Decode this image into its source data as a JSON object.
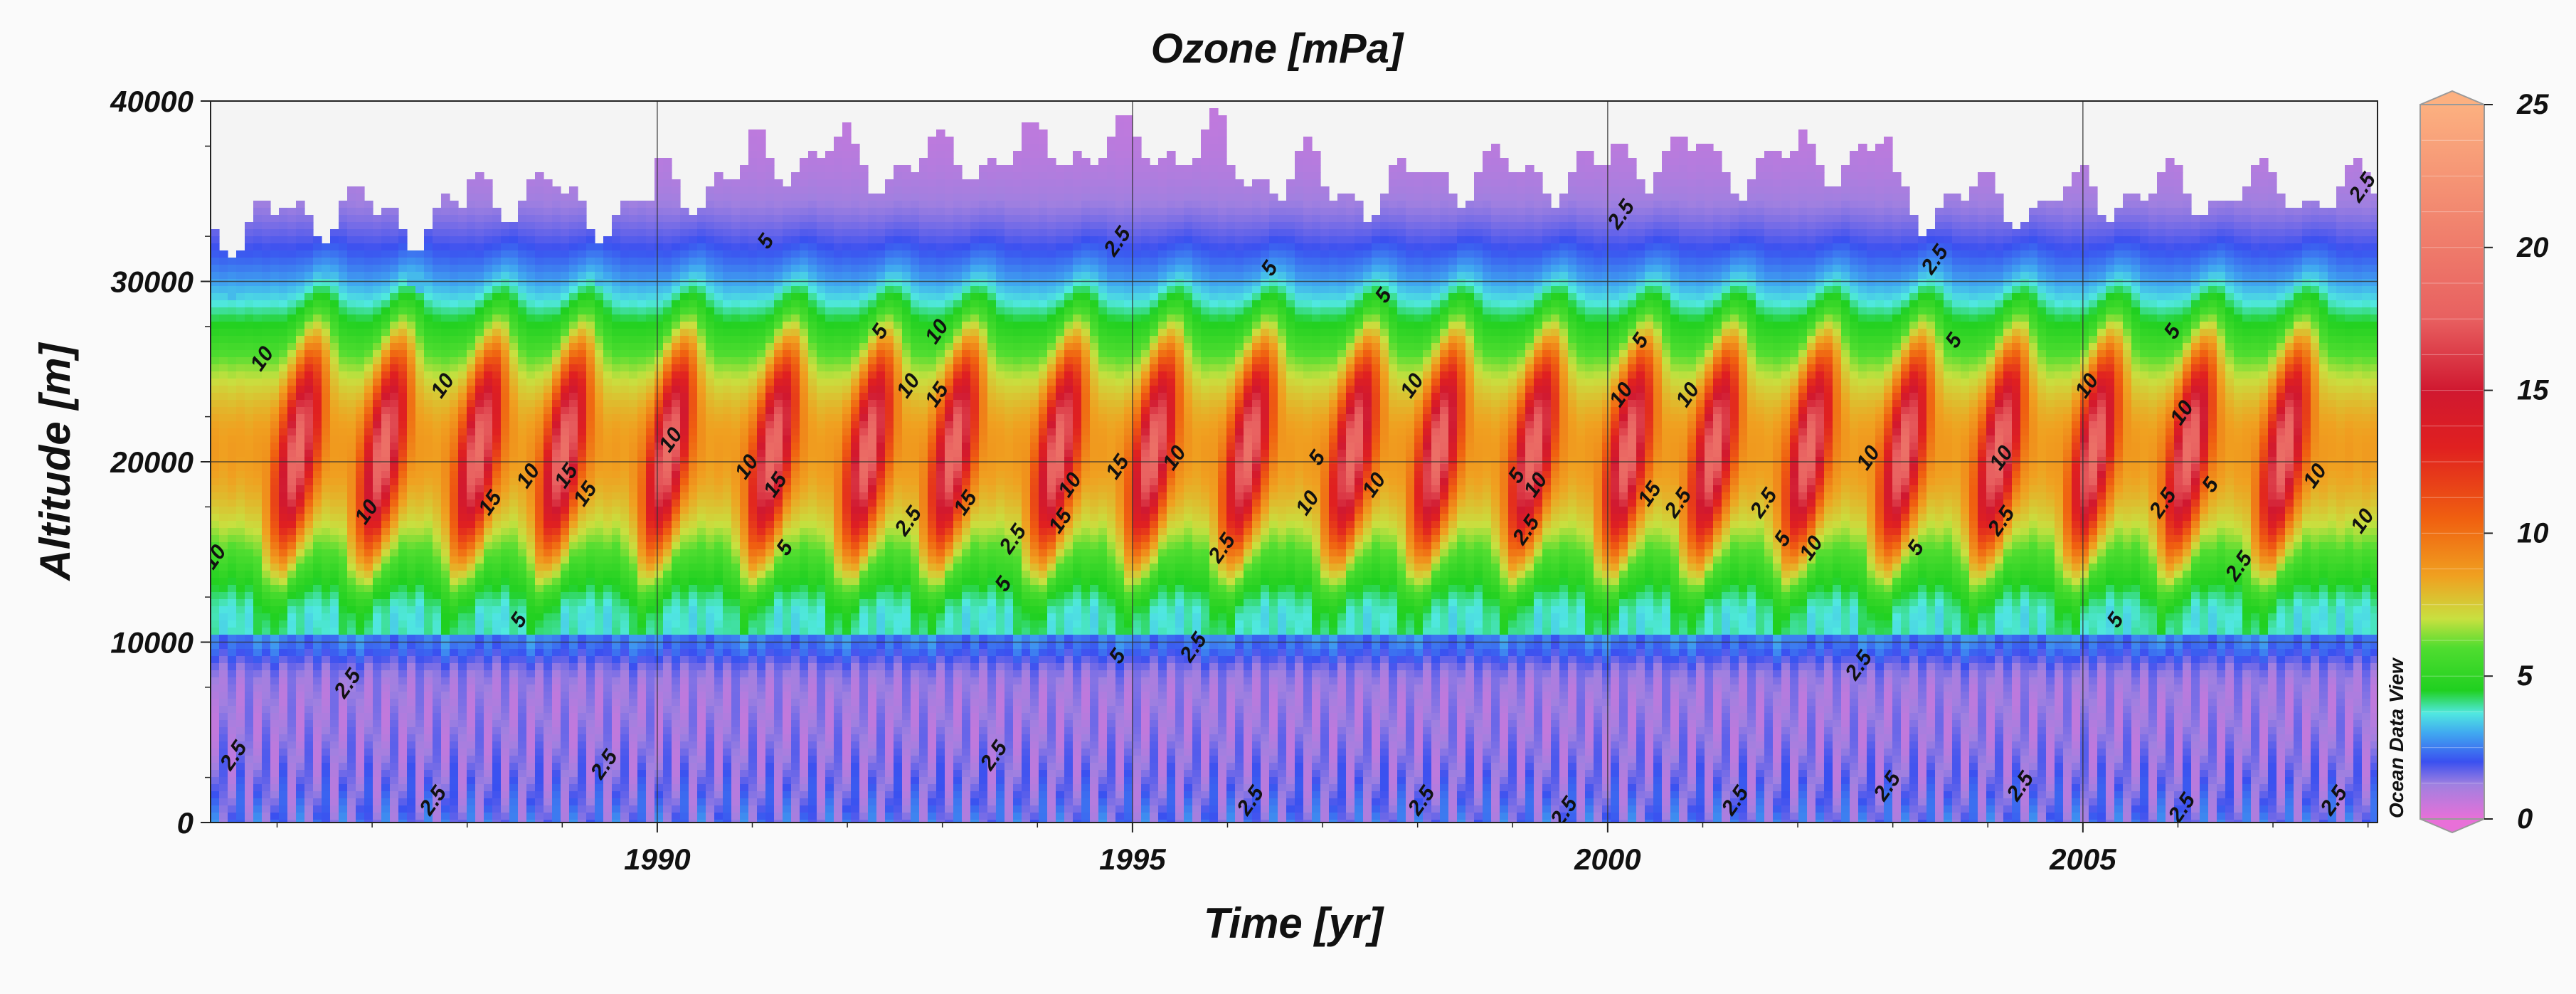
{
  "chart_data": {
    "type": "heatmap",
    "title": "Ozone [mPa]",
    "xlabel": "Time [yr]",
    "ylabel": "Altitude [m]",
    "xlim": [
      1985.3,
      2008.1
    ],
    "ylim": [
      0,
      40000
    ],
    "x_ticks": [
      1990,
      1995,
      2000,
      2005
    ],
    "x_tick_labels": [
      "1990",
      "1995",
      "2000",
      "2005"
    ],
    "y_ticks": [
      0,
      10000,
      20000,
      30000,
      40000
    ],
    "y_tick_labels": [
      "0",
      "10000",
      "20000",
      "30000",
      "40000"
    ],
    "grid": true,
    "colorbar": {
      "range": [
        0,
        25
      ],
      "ticks": [
        0,
        5,
        10,
        15,
        20,
        25
      ],
      "tick_labels": [
        "0",
        "5",
        "10",
        "15",
        "20",
        "25"
      ],
      "stops": [
        {
          "value": 0,
          "color": "#e870d8"
        },
        {
          "value": 1.2,
          "color": "#a080e0"
        },
        {
          "value": 2.0,
          "color": "#3a50f0"
        },
        {
          "value": 3.0,
          "color": "#40a8f0"
        },
        {
          "value": 3.7,
          "color": "#50e8e0"
        },
        {
          "value": 4.5,
          "color": "#20d020"
        },
        {
          "value": 6.0,
          "color": "#50dd30"
        },
        {
          "value": 7.0,
          "color": "#c8e040"
        },
        {
          "value": 8.5,
          "color": "#f0a020"
        },
        {
          "value": 10.5,
          "color": "#f06010"
        },
        {
          "value": 13,
          "color": "#e02020"
        },
        {
          "value": 15,
          "color": "#d01830"
        },
        {
          "value": 17.5,
          "color": "#e86060"
        },
        {
          "value": 25,
          "color": "#fcb080"
        }
      ]
    },
    "contour_levels": [
      2.5,
      5,
      10,
      15
    ],
    "seasonal_peaks": [
      1986.2,
      1987.1,
      1988.1,
      1989.0,
      1990.1,
      1991.2,
      1992.2,
      1993.1,
      1994.2,
      1995.2,
      1996.2,
      1997.3,
      1998.2,
      1999.2,
      2000.2,
      2001.1,
      2002.1,
      2003.1,
      2004.1,
      2005.1,
      2006.1,
      2007.1
    ],
    "max_altitude_by_year": [
      {
        "x": 1985.5,
        "y": 33000
      },
      {
        "x": 1986.5,
        "y": 34000
      },
      {
        "x": 1987.5,
        "y": 33500
      },
      {
        "x": 1988.5,
        "y": 35000
      },
      {
        "x": 1989.5,
        "y": 34000
      },
      {
        "x": 1990.5,
        "y": 35500
      },
      {
        "x": 1991.5,
        "y": 37000
      },
      {
        "x": 1992.5,
        "y": 36500
      },
      {
        "x": 1993.5,
        "y": 37000
      },
      {
        "x": 1994.5,
        "y": 37500
      },
      {
        "x": 1995.5,
        "y": 37500
      },
      {
        "x": 1996.5,
        "y": 36000
      },
      {
        "x": 1997.5,
        "y": 35000
      },
      {
        "x": 1998.5,
        "y": 36000
      },
      {
        "x": 1999.5,
        "y": 36000
      },
      {
        "x": 2000.5,
        "y": 37000
      },
      {
        "x": 2001.5,
        "y": 36500
      },
      {
        "x": 2002.5,
        "y": 37000
      },
      {
        "x": 2003.5,
        "y": 34500
      },
      {
        "x": 2004.5,
        "y": 34500
      },
      {
        "x": 2005.5,
        "y": 35000
      },
      {
        "x": 2006.5,
        "y": 35000
      },
      {
        "x": 2007.5,
        "y": 35000
      }
    ],
    "contour_labels": [
      {
        "text": "10",
        "x": 1985.9,
        "y": 25500
      },
      {
        "text": "10",
        "x": 1987.0,
        "y": 17000
      },
      {
        "text": "10",
        "x": 1987.8,
        "y": 24000
      },
      {
        "text": "15",
        "x": 1988.3,
        "y": 17500
      },
      {
        "text": "10",
        "x": 1988.7,
        "y": 19000
      },
      {
        "text": "15",
        "x": 1989.1,
        "y": 19000
      },
      {
        "text": "15",
        "x": 1989.3,
        "y": 18000
      },
      {
        "text": "10",
        "x": 1990.2,
        "y": 21000
      },
      {
        "text": "10",
        "x": 1991.0,
        "y": 19500
      },
      {
        "text": "15",
        "x": 1991.3,
        "y": 18500
      },
      {
        "text": "5",
        "x": 1991.4,
        "y": 15000
      },
      {
        "text": "5",
        "x": 1991.2,
        "y": 32000
      },
      {
        "text": "10",
        "x": 1992.7,
        "y": 24000
      },
      {
        "text": "15",
        "x": 1993.0,
        "y": 23500
      },
      {
        "text": "10",
        "x": 1993.0,
        "y": 27000
      },
      {
        "text": "5",
        "x": 1992.4,
        "y": 27000
      },
      {
        "text": "15",
        "x": 1993.3,
        "y": 17500
      },
      {
        "text": "2.5",
        "x": 1992.7,
        "y": 16500
      },
      {
        "text": "2.5",
        "x": 1993.8,
        "y": 15500
      },
      {
        "text": "5",
        "x": 1993.7,
        "y": 13000
      },
      {
        "text": "10",
        "x": 1994.4,
        "y": 18500
      },
      {
        "text": "15",
        "x": 1994.3,
        "y": 16500
      },
      {
        "text": "2.5",
        "x": 1994.9,
        "y": 32000
      },
      {
        "text": "15",
        "x": 1994.9,
        "y": 19500
      },
      {
        "text": "10",
        "x": 1995.5,
        "y": 20000
      },
      {
        "text": "2.5",
        "x": 1996.0,
        "y": 15000
      },
      {
        "text": "5",
        "x": 1996.5,
        "y": 30500
      },
      {
        "text": "5",
        "x": 1997.0,
        "y": 20000
      },
      {
        "text": "10",
        "x": 1996.9,
        "y": 17500
      },
      {
        "text": "10",
        "x": 1997.6,
        "y": 18500
      },
      {
        "text": "10",
        "x": 1998.0,
        "y": 24000
      },
      {
        "text": "5",
        "x": 1997.7,
        "y": 29000
      },
      {
        "text": "5",
        "x": 1999.1,
        "y": 19000
      },
      {
        "text": "10",
        "x": 1999.3,
        "y": 18500
      },
      {
        "text": "2.5",
        "x": 1999.2,
        "y": 16000
      },
      {
        "text": "2.5",
        "x": 2000.2,
        "y": 33500
      },
      {
        "text": "5",
        "x": 2000.4,
        "y": 26500
      },
      {
        "text": "10",
        "x": 2000.2,
        "y": 23500
      },
      {
        "text": "15",
        "x": 2000.5,
        "y": 18000
      },
      {
        "text": "10",
        "x": 2000.9,
        "y": 23500
      },
      {
        "text": "2.5",
        "x": 2000.8,
        "y": 17500
      },
      {
        "text": "2.5",
        "x": 2001.7,
        "y": 17500
      },
      {
        "text": "5",
        "x": 2001.9,
        "y": 15500
      },
      {
        "text": "10",
        "x": 2002.2,
        "y": 15000
      },
      {
        "text": "10",
        "x": 2002.8,
        "y": 20000
      },
      {
        "text": "5",
        "x": 2003.3,
        "y": 15000
      },
      {
        "text": "2.5",
        "x": 2003.5,
        "y": 31000
      },
      {
        "text": "5",
        "x": 2003.7,
        "y": 26500
      },
      {
        "text": "10",
        "x": 2004.2,
        "y": 20000
      },
      {
        "text": "2.5",
        "x": 2004.2,
        "y": 16500
      },
      {
        "text": "10",
        "x": 2005.1,
        "y": 24000
      },
      {
        "text": "10",
        "x": 2006.1,
        "y": 22500
      },
      {
        "text": "5",
        "x": 2006.0,
        "y": 27000
      },
      {
        "text": "2.5",
        "x": 2005.9,
        "y": 17500
      },
      {
        "text": "5",
        "x": 2006.4,
        "y": 18500
      },
      {
        "text": "2.5",
        "x": 2006.7,
        "y": 14000
      },
      {
        "text": "10",
        "x": 2007.5,
        "y": 19000
      },
      {
        "text": "5",
        "x": 2005.4,
        "y": 11000
      },
      {
        "text": "5",
        "x": 1994.9,
        "y": 9000
      },
      {
        "text": "2.5",
        "x": 1995.7,
        "y": 9500
      },
      {
        "text": "2.5",
        "x": 2002.7,
        "y": 8500
      },
      {
        "text": "5",
        "x": 1988.6,
        "y": 11000
      },
      {
        "text": "2.5",
        "x": 1986.8,
        "y": 7500
      },
      {
        "text": "2.5",
        "x": 1985.6,
        "y": 3500
      },
      {
        "text": "2.5",
        "x": 1987.7,
        "y": 1000
      },
      {
        "text": "2.5",
        "x": 1989.5,
        "y": 3000
      },
      {
        "text": "2.5",
        "x": 1993.6,
        "y": 3500
      },
      {
        "text": "2.5",
        "x": 1996.3,
        "y": 1000
      },
      {
        "text": "2.5",
        "x": 1998.1,
        "y": 1000
      },
      {
        "text": "2.5",
        "x": 1999.6,
        "y": 400
      },
      {
        "text": "2.5",
        "x": 2001.4,
        "y": 1000
      },
      {
        "text": "2.5",
        "x": 2003.0,
        "y": 1800
      },
      {
        "text": "2.5",
        "x": 2004.4,
        "y": 1800
      },
      {
        "text": "2.5",
        "x": 2006.1,
        "y": 600
      },
      {
        "text": "2.5",
        "x": 2007.7,
        "y": 1000
      },
      {
        "text": "2.5",
        "x": 2008.0,
        "y": 35000
      },
      {
        "text": "10",
        "x": 1985.4,
        "y": 14500
      },
      {
        "text": "10",
        "x": 2008.0,
        "y": 16500
      }
    ]
  },
  "watermark": "Ocean Data View"
}
